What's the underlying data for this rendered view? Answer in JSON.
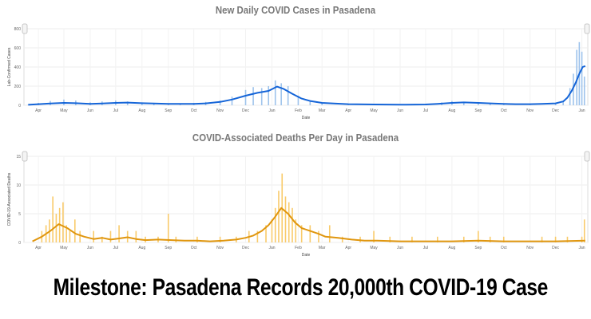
{
  "headline": "Milestone: Pasadena Records 20,000th COVID-19 Case",
  "chart_data": [
    {
      "type": "line",
      "title": "New Daily COVID Cases in Pasadena",
      "xlabel": "Date",
      "ylabel": "Lab-Confirmed Cases",
      "ylim": [
        0,
        800
      ],
      "yticks": [
        "0",
        "200",
        "400",
        "600",
        "800"
      ],
      "xticks": [
        "Apr",
        "May",
        "Jun",
        "Jul",
        "Aug",
        "Sep",
        "Oct",
        "Nov",
        "Dec",
        "Jan",
        "Feb",
        "Mar",
        "Apr",
        "May",
        "Jun",
        "Jul",
        "Aug",
        "Sep",
        "Oct",
        "Nov",
        "Dec",
        "Jan"
      ],
      "grid": true,
      "colors": {
        "bars": "#9ec3ec",
        "line": "#1565d8"
      },
      "series": [
        {
          "kind": "bars",
          "x": [
            "2020-03-20",
            "2020-04-01",
            "2020-04-15",
            "2020-05-01",
            "2020-05-15",
            "2020-06-01",
            "2020-06-15",
            "2020-07-01",
            "2020-07-15",
            "2020-08-01",
            "2020-08-15",
            "2020-09-01",
            "2020-09-15",
            "2020-10-01",
            "2020-10-15",
            "2020-11-01",
            "2020-11-15",
            "2020-12-01",
            "2020-12-10",
            "2020-12-20",
            "2020-12-28",
            "2021-01-05",
            "2021-01-12",
            "2021-01-20",
            "2021-02-01",
            "2021-02-15",
            "2021-03-01",
            "2021-04-01",
            "2021-05-01",
            "2021-06-01",
            "2021-07-01",
            "2021-07-20",
            "2021-08-01",
            "2021-08-15",
            "2021-09-01",
            "2021-09-15",
            "2021-10-01",
            "2021-11-01",
            "2021-12-01",
            "2021-12-10",
            "2021-12-18",
            "2021-12-22",
            "2021-12-26",
            "2021-12-29",
            "2022-01-01",
            "2022-01-04"
          ],
          "values": [
            5,
            25,
            45,
            60,
            50,
            30,
            40,
            50,
            40,
            30,
            25,
            20,
            20,
            25,
            35,
            50,
            90,
            160,
            190,
            180,
            200,
            260,
            230,
            200,
            100,
            50,
            30,
            15,
            10,
            10,
            15,
            30,
            45,
            35,
            25,
            20,
            15,
            15,
            25,
            45,
            180,
            330,
            580,
            660,
            560,
            300
          ]
        },
        {
          "kind": "line",
          "x": [
            "2020-03-20",
            "2020-04-15",
            "2020-05-01",
            "2020-05-15",
            "2020-06-01",
            "2020-06-15",
            "2020-07-01",
            "2020-07-15",
            "2020-08-01",
            "2020-08-15",
            "2020-09-01",
            "2020-09-15",
            "2020-10-01",
            "2020-10-15",
            "2020-11-01",
            "2020-11-15",
            "2020-12-01",
            "2020-12-15",
            "2020-12-28",
            "2021-01-07",
            "2021-01-15",
            "2021-01-25",
            "2021-02-05",
            "2021-02-15",
            "2021-03-01",
            "2021-03-15",
            "2021-04-01",
            "2021-05-01",
            "2021-06-01",
            "2021-07-01",
            "2021-07-15",
            "2021-08-01",
            "2021-08-15",
            "2021-09-01",
            "2021-09-15",
            "2021-10-01",
            "2021-10-15",
            "2021-11-01",
            "2021-11-15",
            "2021-12-01",
            "2021-12-10",
            "2021-12-15",
            "2021-12-20",
            "2021-12-25",
            "2021-12-29",
            "2022-01-02",
            "2022-01-05"
          ],
          "values": [
            5,
            18,
            25,
            22,
            15,
            18,
            25,
            28,
            22,
            18,
            15,
            14,
            15,
            20,
            35,
            60,
            100,
            130,
            150,
            195,
            170,
            120,
            70,
            45,
            25,
            18,
            12,
            8,
            6,
            8,
            15,
            25,
            30,
            25,
            20,
            15,
            12,
            12,
            15,
            20,
            40,
            80,
            150,
            240,
            330,
            400,
            410
          ]
        }
      ]
    },
    {
      "type": "line",
      "title": "COVID-Associated Deaths Per Day in Pasadena",
      "xlabel": "Date",
      "ylabel": "COVID-19-Associated Deaths",
      "ylim": [
        0,
        15
      ],
      "yticks": [
        "0",
        "5",
        "10",
        "15"
      ],
      "xticks": [
        "Apr",
        "May",
        "Jun",
        "Jul",
        "Aug",
        "Sep",
        "Oct",
        "Nov",
        "Dec",
        "Jan",
        "Feb",
        "Mar",
        "Apr",
        "May",
        "Jun",
        "Jul",
        "Aug",
        "Sep",
        "Oct",
        "Nov",
        "Dec",
        "Jan"
      ],
      "grid": true,
      "colors": {
        "bars": "#f9cb6b",
        "line": "#e0960e"
      },
      "series": [
        {
          "kind": "bars",
          "x": [
            "2020-04-05",
            "2020-04-10",
            "2020-04-14",
            "2020-04-18",
            "2020-04-22",
            "2020-04-26",
            "2020-04-30",
            "2020-05-04",
            "2020-05-08",
            "2020-05-14",
            "2020-05-20",
            "2020-06-05",
            "2020-06-15",
            "2020-06-25",
            "2020-07-05",
            "2020-07-15",
            "2020-07-25",
            "2020-08-05",
            "2020-08-20",
            "2020-09-01",
            "2020-09-10",
            "2020-10-05",
            "2020-11-01",
            "2020-11-20",
            "2020-12-05",
            "2020-12-15",
            "2020-12-25",
            "2021-01-01",
            "2021-01-05",
            "2021-01-09",
            "2021-01-13",
            "2021-01-17",
            "2021-01-21",
            "2021-01-25",
            "2021-01-29",
            "2021-02-05",
            "2021-02-15",
            "2021-02-25",
            "2021-03-10",
            "2021-03-25",
            "2021-04-15",
            "2021-05-01",
            "2021-05-20",
            "2021-06-15",
            "2021-07-15",
            "2021-08-15",
            "2021-09-01",
            "2021-09-15",
            "2021-10-01",
            "2021-11-15",
            "2021-12-01",
            "2021-12-15",
            "2022-01-01",
            "2022-01-04"
          ],
          "values": [
            2,
            3,
            4,
            8,
            5,
            6,
            7,
            3,
            2,
            4,
            2,
            2,
            1,
            2,
            3,
            2,
            2,
            1,
            1,
            5,
            1,
            1,
            1,
            1,
            2,
            2,
            3,
            4,
            6,
            9,
            12,
            8,
            7,
            6,
            4,
            3,
            3,
            2,
            3,
            1,
            1,
            2,
            1,
            1,
            1,
            1,
            2,
            1,
            1,
            1,
            1,
            1,
            1,
            4
          ]
        },
        {
          "kind": "line",
          "x": [
            "2020-03-25",
            "2020-04-05",
            "2020-04-15",
            "2020-04-25",
            "2020-05-05",
            "2020-05-15",
            "2020-05-25",
            "2020-06-05",
            "2020-06-15",
            "2020-06-25",
            "2020-07-05",
            "2020-07-15",
            "2020-07-25",
            "2020-08-05",
            "2020-08-20",
            "2020-09-05",
            "2020-09-20",
            "2020-10-05",
            "2020-10-20",
            "2020-11-05",
            "2020-11-20",
            "2020-12-01",
            "2020-12-10",
            "2020-12-20",
            "2020-12-28",
            "2021-01-05",
            "2021-01-12",
            "2021-01-20",
            "2021-01-28",
            "2021-02-05",
            "2021-02-15",
            "2021-02-25",
            "2021-03-05",
            "2021-03-20",
            "2021-04-05",
            "2021-04-20",
            "2021-05-05",
            "2021-06-01",
            "2021-07-01",
            "2021-08-01",
            "2021-09-01",
            "2021-10-01",
            "2021-11-01",
            "2021-12-01",
            "2022-01-05"
          ],
          "values": [
            0.2,
            1.0,
            2.0,
            3.2,
            2.5,
            1.5,
            1.0,
            0.6,
            0.8,
            0.5,
            0.7,
            0.9,
            0.6,
            0.4,
            0.5,
            0.4,
            0.3,
            0.3,
            0.2,
            0.3,
            0.5,
            0.8,
            1.2,
            2.0,
            3.0,
            4.5,
            6.0,
            5.0,
            3.5,
            2.5,
            2.0,
            1.5,
            1.0,
            0.8,
            0.5,
            0.3,
            0.3,
            0.2,
            0.2,
            0.2,
            0.3,
            0.2,
            0.2,
            0.2,
            0.3
          ]
        }
      ]
    }
  ]
}
